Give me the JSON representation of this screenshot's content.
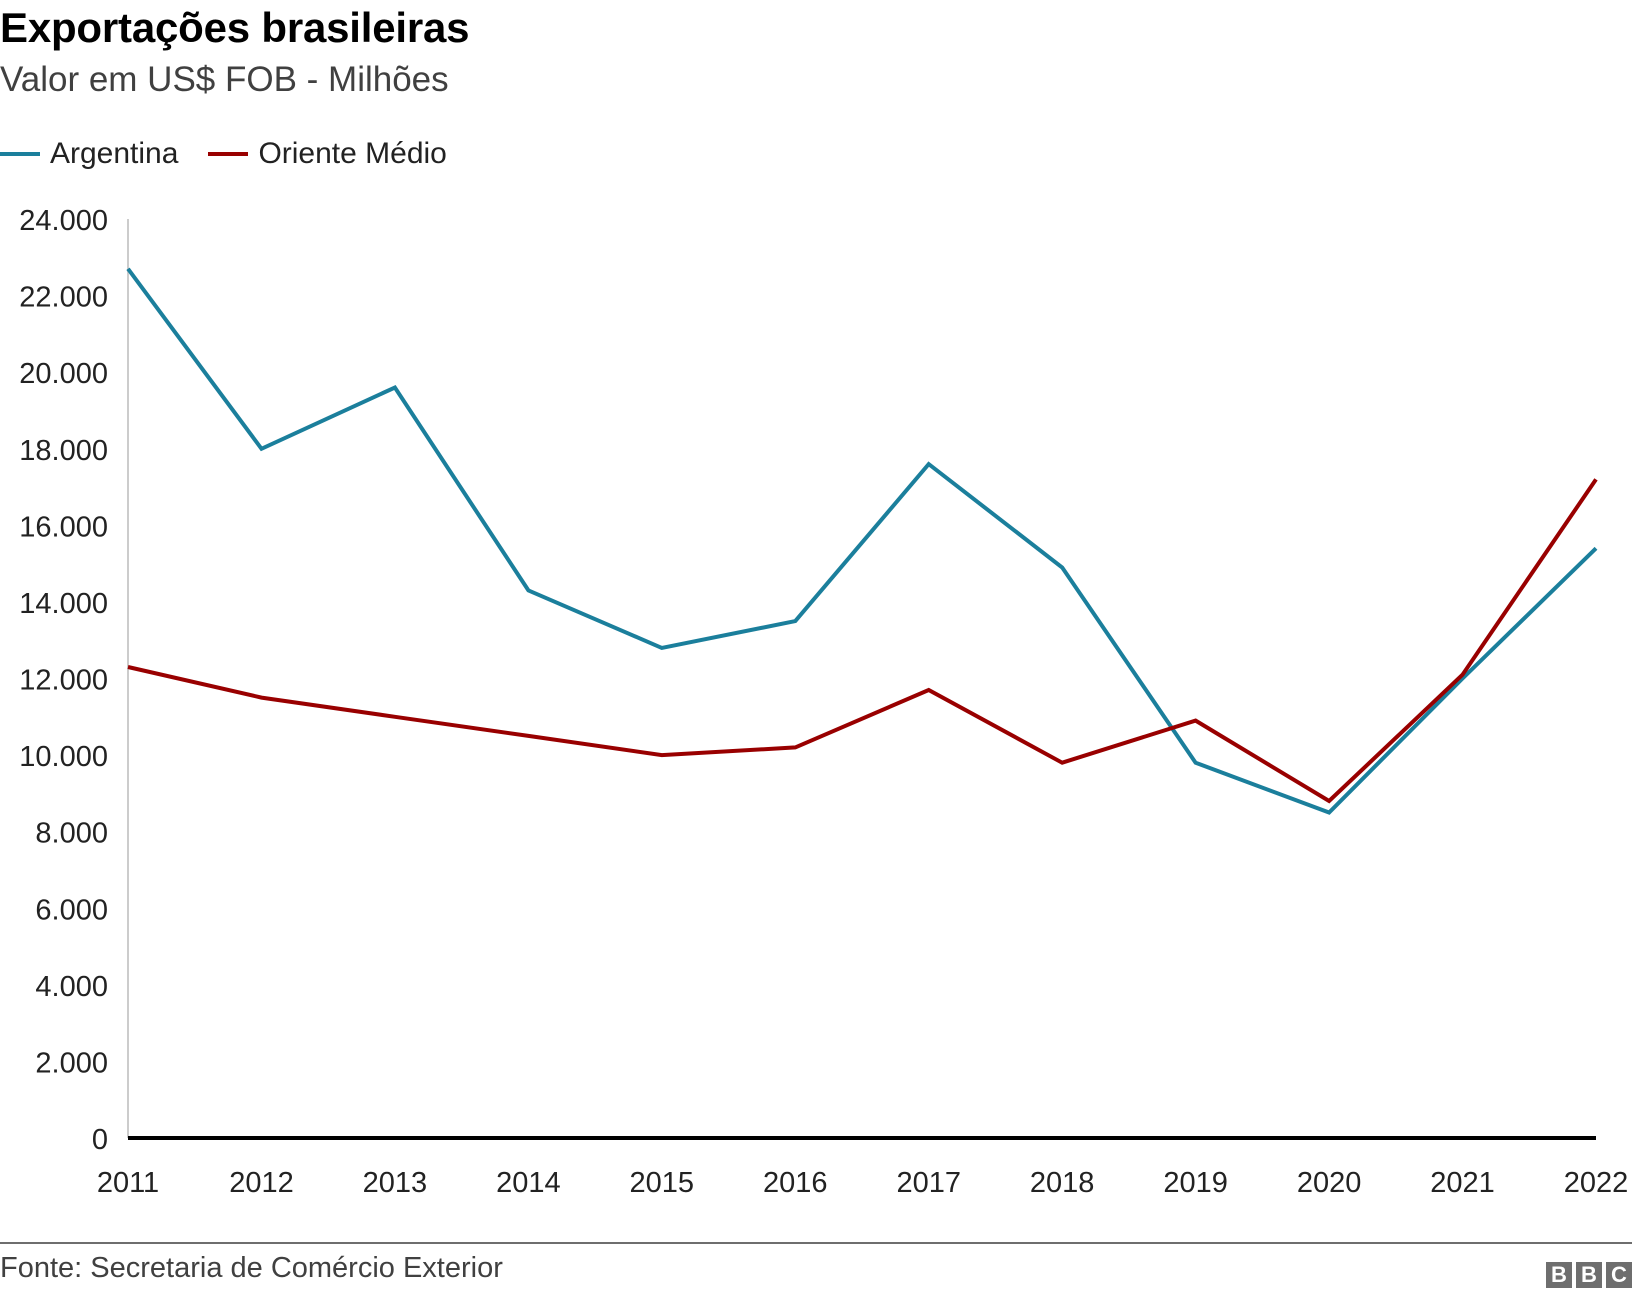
{
  "header": {
    "title": "Exportações brasileiras",
    "subtitle": "Valor em US$ FOB - Milhões"
  },
  "legend": [
    {
      "label": "Argentina",
      "color": "#1b7f9c"
    },
    {
      "label": "Oriente Médio",
      "color": "#990000"
    }
  ],
  "footer": {
    "source": "Fonte: Secretaria de Comércio Exterior",
    "logo": [
      "B",
      "B",
      "C"
    ]
  },
  "chart_data": {
    "type": "line",
    "title": "Exportações brasileiras",
    "subtitle": "Valor em US$ FOB - Milhões",
    "xlabel": "",
    "ylabel": "",
    "x": [
      "2011",
      "2012",
      "2013",
      "2014",
      "2015",
      "2016",
      "2017",
      "2018",
      "2019",
      "2020",
      "2021",
      "2022"
    ],
    "series": [
      {
        "name": "Argentina",
        "color": "#1b7f9c",
        "values": [
          22700,
          18000,
          19600,
          14300,
          12800,
          13500,
          17600,
          14900,
          9800,
          8500,
          12000,
          15400
        ]
      },
      {
        "name": "Oriente Médio",
        "color": "#990000",
        "values": [
          12300,
          11500,
          11000,
          10500,
          10000,
          10200,
          11700,
          9800,
          10900,
          8800,
          12100,
          17200
        ]
      }
    ],
    "ylim": [
      0,
      24000
    ],
    "yticks": [
      0,
      2000,
      4000,
      6000,
      8000,
      10000,
      12000,
      14000,
      16000,
      18000,
      20000,
      22000,
      24000
    ],
    "ytick_labels": [
      "0",
      "2.000",
      "4.000",
      "6.000",
      "8.000",
      "10.000",
      "12.000",
      "14.000",
      "16.000",
      "18.000",
      "20.000",
      "22.000",
      "24.000"
    ],
    "grid": false,
    "legend_position": "top-left",
    "source": "Fonte: Secretaria de Comércio Exterior"
  }
}
